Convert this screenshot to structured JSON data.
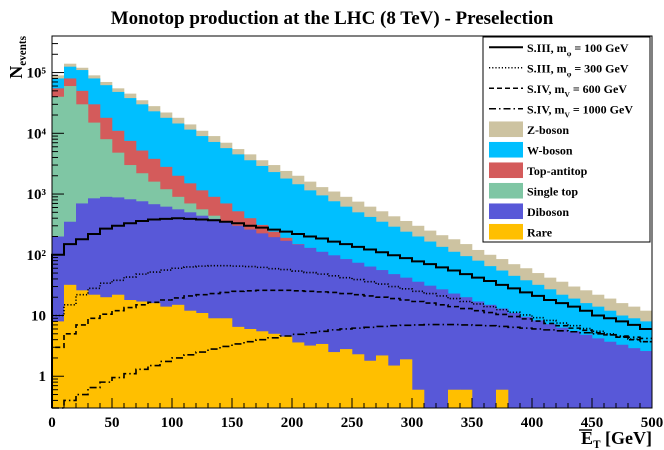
{
  "chart_data": {
    "type": "histogram",
    "stacked": true,
    "title": "Monotop production at the LHC (8 TeV) - Preselection",
    "xlabel": "E_T [GeV]",
    "ylabel": "N_events",
    "xlim": [
      0,
      500
    ],
    "ylim": [
      0.3,
      400000
    ],
    "yscale": "log",
    "bin_width": 10,
    "x_ticks": [
      0,
      50,
      100,
      150,
      200,
      250,
      300,
      350,
      400,
      450,
      500
    ],
    "y_ticks": [
      {
        "value": 1,
        "label": "1"
      },
      {
        "value": 10,
        "label": "10"
      },
      {
        "value": 100,
        "label": "10²"
      },
      {
        "value": 1000,
        "label": "10³"
      },
      {
        "value": 10000,
        "label": "10⁴"
      },
      {
        "value": 100000,
        "label": "10⁵"
      }
    ],
    "x_edges": [
      0,
      10,
      20,
      30,
      40,
      50,
      60,
      70,
      80,
      90,
      100,
      110,
      120,
      130,
      140,
      150,
      160,
      170,
      180,
      190,
      200,
      210,
      220,
      230,
      240,
      250,
      260,
      270,
      280,
      290,
      300,
      310,
      320,
      330,
      340,
      350,
      360,
      370,
      380,
      390,
      400,
      410,
      420,
      430,
      440,
      450,
      460,
      470,
      480,
      490,
      500
    ],
    "stack_order_bottom_to_top": [
      "Rare",
      "Diboson",
      "Single top",
      "Top-antitop",
      "W-boson",
      "Z-boson"
    ],
    "backgrounds": [
      {
        "name": "Z-boson",
        "color": "#cdc3a1",
        "cumulative": [
          90000,
          140000,
          120000,
          90000,
          70000,
          55000,
          45000,
          35000,
          28000,
          22000,
          18000,
          14000,
          11000,
          9000,
          7000,
          5500,
          4500,
          3600,
          3000,
          2400,
          2000,
          1600,
          1300,
          1100,
          900,
          750,
          620,
          520,
          430,
          360,
          300,
          250,
          210,
          180,
          150,
          120,
          100,
          85,
          70,
          60,
          50,
          42,
          36,
          30,
          26,
          22,
          19,
          16,
          14,
          12
        ]
      },
      {
        "name": "W-boson",
        "color": "#00bfff",
        "cumulative": [
          80000,
          125000,
          110000,
          80000,
          62000,
          48000,
          38000,
          30000,
          23000,
          18000,
          14500,
          11500,
          9000,
          7200,
          5700,
          4500,
          3600,
          2900,
          2300,
          1800,
          1450,
          1150,
          950,
          760,
          620,
          500,
          420,
          350,
          290,
          240,
          200,
          165,
          135,
          112,
          95,
          80,
          65,
          55,
          45,
          38,
          32,
          27,
          22,
          19,
          16,
          14,
          12,
          10,
          9,
          8
        ]
      },
      {
        "name": "Top-antitop",
        "color": "#d45b5b",
        "cumulative": [
          55000,
          80000,
          50000,
          30000,
          18000,
          11000,
          7500,
          5200,
          3800,
          2800,
          2000,
          1500,
          1150,
          900,
          700,
          520,
          400,
          310,
          240,
          190,
          150,
          115,
          90,
          70,
          56,
          44,
          36,
          29,
          24,
          19,
          16,
          13,
          11,
          9,
          7.5,
          6.2,
          5.2,
          4.5,
          3.8,
          3.2,
          2.8,
          2.4,
          2.1,
          1.8,
          1.6,
          1.4,
          1.3,
          1.2,
          1.1,
          1.0
        ]
      },
      {
        "name": "Single top",
        "color": "#7fc6a4",
        "cumulative": [
          40000,
          60000,
          30000,
          15000,
          8000,
          4800,
          3000,
          2200,
          1600,
          1200,
          900,
          700,
          560,
          440,
          350,
          280,
          220,
          180,
          145,
          118,
          95,
          78,
          64,
          53,
          44,
          37,
          31,
          26,
          22,
          18.5,
          15.5,
          13,
          11,
          9.3,
          8,
          6.9,
          6,
          5.2,
          4.5,
          3.9,
          3.4,
          3,
          2.6,
          2.3,
          2.1,
          1.9,
          1.7,
          1.6,
          1.5,
          1.4
        ]
      },
      {
        "name": "Diboson",
        "color": "#5858d8",
        "cumulative": [
          200,
          350,
          700,
          850,
          900,
          880,
          820,
          760,
          680,
          620,
          560,
          500,
          440,
          390,
          340,
          300,
          260,
          225,
          195,
          170,
          148,
          130,
          112,
          98,
          85,
          74,
          64,
          56,
          48,
          42,
          36,
          31,
          27,
          23,
          20,
          17,
          15,
          13,
          11,
          9.5,
          8.3,
          7.2,
          6.3,
          5.5,
          4.8,
          4.2,
          3.7,
          3.3,
          2.9,
          2.6
        ]
      },
      {
        "name": "Rare",
        "color": "#ffbf00",
        "cumulative": [
          8,
          32,
          26,
          22,
          20,
          22,
          18,
          17,
          16,
          14,
          15,
          12,
          11,
          9,
          9,
          6.5,
          6,
          5.5,
          5,
          4.5,
          3.6,
          3.2,
          3.4,
          2.5,
          2.8,
          2.3,
          1.8,
          2.2,
          1.5,
          1.9,
          0.6,
          0,
          0,
          0.6,
          0.6,
          0,
          0,
          0.6,
          0,
          0,
          0,
          0,
          0,
          0,
          0,
          0,
          0,
          0,
          0,
          0
        ]
      }
    ],
    "signals": [
      {
        "name": "S.III, m_φ = 100 GeV",
        "style": "solid",
        "values": [
          100,
          150,
          180,
          220,
          270,
          300,
          330,
          360,
          380,
          390,
          400,
          390,
          380,
          370,
          350,
          330,
          300,
          280,
          260,
          240,
          220,
          200,
          185,
          165,
          150,
          135,
          122,
          110,
          98,
          88,
          78,
          70,
          62,
          55,
          48,
          42,
          37,
          32,
          28,
          24,
          21,
          18,
          16,
          14,
          12,
          10,
          9,
          8,
          7,
          6
        ]
      },
      {
        "name": "S.III, m_φ = 300 GeV",
        "style": "dotted",
        "values": [
          10,
          15,
          22,
          28,
          34,
          38,
          43,
          48,
          52,
          56,
          60,
          63,
          65,
          66,
          66,
          65,
          64,
          62,
          59,
          57,
          54,
          51,
          48,
          45,
          42,
          39,
          36,
          33,
          30,
          27.5,
          25,
          23,
          21,
          19,
          17,
          15.5,
          14,
          12.5,
          11.3,
          10.2,
          9.2,
          8.3,
          7.5,
          6.8,
          6.1,
          5.5,
          5,
          4.5,
          4.1,
          3.7
        ]
      },
      {
        "name": "S.IV, m_V = 600 GeV",
        "style": "dashed",
        "values": [
          3,
          5,
          7,
          9,
          10.5,
          12,
          13.5,
          15,
          16.5,
          18,
          19.5,
          21,
          22,
          23,
          24,
          25,
          25.5,
          26,
          26,
          26,
          25.5,
          25,
          24.5,
          24,
          23,
          22,
          21,
          20,
          19,
          18,
          17,
          16,
          15,
          14,
          13,
          12,
          11.2,
          10.4,
          9.6,
          8.8,
          8.1,
          7.4,
          6.8,
          6.2,
          5.7,
          5.2,
          4.8,
          4.4,
          4,
          3.7
        ]
      },
      {
        "name": "S.IV, m_V = 1000 GeV",
        "style": "dashdot",
        "values": [
          0.3,
          0.4,
          0.5,
          0.65,
          0.8,
          0.95,
          1.1,
          1.3,
          1.5,
          1.75,
          2,
          2.25,
          2.5,
          2.8,
          3.1,
          3.4,
          3.7,
          4,
          4.3,
          4.6,
          4.9,
          5.2,
          5.5,
          5.8,
          6,
          6.2,
          6.4,
          6.6,
          6.8,
          6.9,
          7,
          7.1,
          7.1,
          7.1,
          7,
          6.9,
          6.8,
          6.6,
          6.4,
          6.2,
          6,
          5.8,
          5.6,
          5.4,
          5.2,
          5,
          4.8,
          4.6,
          4.4,
          4.2
        ]
      }
    ],
    "legend": {
      "placement": "top-right",
      "entries": [
        {
          "label": "S.III, m_φ = 100 GeV",
          "kind": "line",
          "style": "solid"
        },
        {
          "label": "S.III, m_φ = 300 GeV",
          "kind": "line",
          "style": "dotted"
        },
        {
          "label": "S.IV, m_V = 600 GeV",
          "kind": "line",
          "style": "dashed"
        },
        {
          "label": "S.IV, m_V = 1000 GeV",
          "kind": "line",
          "style": "dashdot"
        },
        {
          "label": "Z-boson",
          "kind": "box",
          "color": "#cdc3a1"
        },
        {
          "label": "W-boson",
          "kind": "box",
          "color": "#00bfff"
        },
        {
          "label": "Top-antitop",
          "kind": "box",
          "color": "#d45b5b"
        },
        {
          "label": "Single top",
          "kind": "box",
          "color": "#7fc6a4"
        },
        {
          "label": "Diboson",
          "kind": "box",
          "color": "#5858d8"
        },
        {
          "label": "Rare",
          "kind": "box",
          "color": "#ffbf00"
        }
      ]
    }
  }
}
